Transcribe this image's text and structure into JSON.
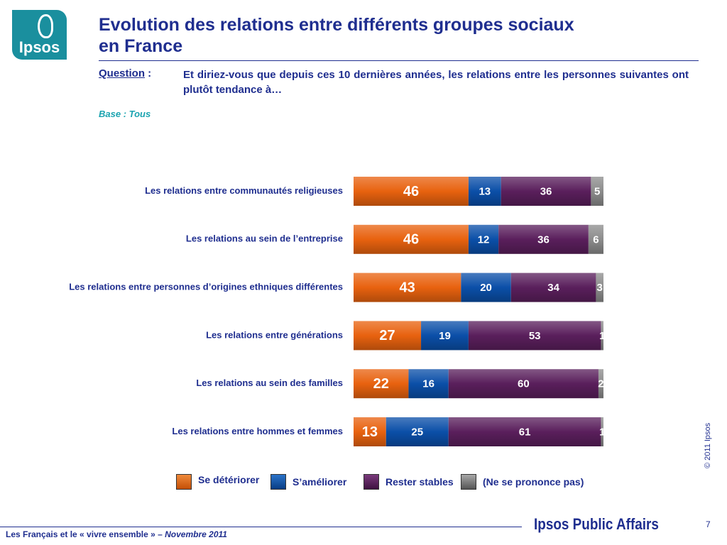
{
  "logo": {
    "text": "Ipsos",
    "color": "#1a8f9e"
  },
  "title": {
    "line1": "Evolution des relations entre différents groupes sociaux",
    "line2": "en France"
  },
  "question": {
    "label": "Question",
    "colon": " :",
    "text": "Et diriez-vous que depuis ces 10 dernières années, les relations entre les personnes suivantes ont plutôt tendance à…"
  },
  "base": "Base : Tous",
  "chart_data": {
    "type": "bar",
    "orientation": "horizontal",
    "stacked": true,
    "categories": [
      "Les relations entre communautés religieuses",
      "Les relations au sein de l’entreprise",
      "Les relations entre personnes d’origines ethniques différentes",
      "Les relations entre générations",
      "Les relations au sein des familles",
      "Les relations entre hommes et femmes"
    ],
    "series": [
      {
        "name": "Se détériorer",
        "color": "#e8620f",
        "values": [
          46,
          46,
          43,
          27,
          22,
          13
        ]
      },
      {
        "name": "S’améliorer",
        "color": "#0b4fa8",
        "values": [
          13,
          12,
          20,
          19,
          16,
          25
        ]
      },
      {
        "name": "Rester stables",
        "color": "#5a1f5c",
        "values": [
          36,
          36,
          34,
          53,
          60,
          61
        ]
      },
      {
        "name": "(Ne se prononce pas)",
        "color": "#8c8c8c",
        "values": [
          5,
          6,
          3,
          1,
          2,
          1
        ]
      }
    ],
    "xlim": [
      0,
      100
    ],
    "grid": false,
    "legend": "bottom"
  },
  "copyright": "© 2011 Ipsos",
  "footer": {
    "text": "Les Français et le « vivre ensemble » – ",
    "date": "Novembre 2011"
  },
  "brand": "Ipsos Public Affairs",
  "page_number": "7"
}
